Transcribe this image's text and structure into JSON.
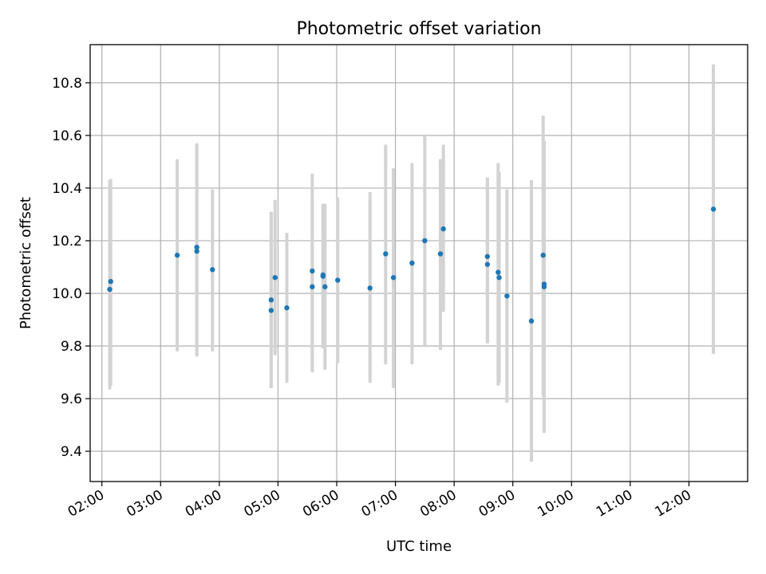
{
  "chart_data": {
    "type": "scatter",
    "title": "Photometric offset variation",
    "xlabel": "UTC time",
    "ylabel": "Photometric offset",
    "x_axis_type": "time",
    "xlim": [
      "01:48",
      "13:00"
    ],
    "ylim": [
      9.285,
      10.945
    ],
    "x_ticks": [
      "02:00",
      "03:00",
      "04:00",
      "05:00",
      "06:00",
      "07:00",
      "08:00",
      "09:00",
      "10:00",
      "11:00",
      "12:00"
    ],
    "y_ticks": [
      "9.4",
      "9.6",
      "9.8",
      "10.0",
      "10.2",
      "10.4",
      "10.6",
      "10.8"
    ],
    "grid": true,
    "point_color": "#1f77b4",
    "errorbar_color": "#d3d3d3",
    "points": [
      {
        "t": "02:08",
        "y": 10.015,
        "ylo": 9.635,
        "yhi": 10.43
      },
      {
        "t": "02:09",
        "y": 10.045,
        "ylo": 9.65,
        "yhi": 10.435
      },
      {
        "t": "03:17",
        "y": 10.145,
        "ylo": 9.78,
        "yhi": 10.51
      },
      {
        "t": "03:37",
        "y": 10.16,
        "ylo": 9.76,
        "yhi": 10.57
      },
      {
        "t": "03:37",
        "y": 10.175,
        "ylo": 9.77,
        "yhi": 10.56
      },
      {
        "t": "03:53",
        "y": 10.09,
        "ylo": 9.78,
        "yhi": 10.395
      },
      {
        "t": "04:53",
        "y": 9.975,
        "ylo": 9.64,
        "yhi": 10.31
      },
      {
        "t": "04:53",
        "y": 9.935,
        "ylo": 9.64,
        "yhi": 10.305
      },
      {
        "t": "04:57",
        "y": 10.06,
        "ylo": 9.765,
        "yhi": 10.355
      },
      {
        "t": "05:09",
        "y": 9.945,
        "ylo": 9.66,
        "yhi": 10.23
      },
      {
        "t": "05:35",
        "y": 10.085,
        "ylo": 9.71,
        "yhi": 10.455
      },
      {
        "t": "05:35",
        "y": 10.025,
        "ylo": 9.7,
        "yhi": 10.35
      },
      {
        "t": "05:46",
        "y": 10.07,
        "ylo": 9.8,
        "yhi": 10.34
      },
      {
        "t": "05:46",
        "y": 10.065,
        "ylo": 9.79,
        "yhi": 10.34
      },
      {
        "t": "05:48",
        "y": 10.025,
        "ylo": 9.71,
        "yhi": 10.34
      },
      {
        "t": "06:01",
        "y": 10.05,
        "ylo": 9.735,
        "yhi": 10.365
      },
      {
        "t": "06:34",
        "y": 10.02,
        "ylo": 9.66,
        "yhi": 10.385
      },
      {
        "t": "06:50",
        "y": 10.15,
        "ylo": 9.73,
        "yhi": 10.565
      },
      {
        "t": "06:58",
        "y": 10.06,
        "ylo": 9.64,
        "yhi": 10.475
      },
      {
        "t": "07:17",
        "y": 10.115,
        "ylo": 9.73,
        "yhi": 10.495
      },
      {
        "t": "07:30",
        "y": 10.2,
        "ylo": 9.8,
        "yhi": 10.6
      },
      {
        "t": "07:46",
        "y": 10.15,
        "ylo": 9.785,
        "yhi": 10.51
      },
      {
        "t": "07:49",
        "y": 10.245,
        "ylo": 9.93,
        "yhi": 10.565
      },
      {
        "t": "08:34",
        "y": 10.14,
        "ylo": 9.81,
        "yhi": 10.435
      },
      {
        "t": "08:34",
        "y": 10.11,
        "ylo": 9.81,
        "yhi": 10.44
      },
      {
        "t": "08:45",
        "y": 10.08,
        "ylo": 9.65,
        "yhi": 10.495
      },
      {
        "t": "08:46",
        "y": 10.06,
        "ylo": 9.66,
        "yhi": 10.46
      },
      {
        "t": "08:54",
        "y": 9.99,
        "ylo": 9.585,
        "yhi": 10.395
      },
      {
        "t": "09:19",
        "y": 9.895,
        "ylo": 9.36,
        "yhi": 10.43
      },
      {
        "t": "09:31",
        "y": 10.145,
        "ylo": 9.61,
        "yhi": 10.675
      },
      {
        "t": "09:32",
        "y": 10.035,
        "ylo": 9.47,
        "yhi": 10.575
      },
      {
        "t": "09:32",
        "y": 10.025,
        "ylo": 9.47,
        "yhi": 10.58
      },
      {
        "t": "12:25",
        "y": 10.32,
        "ylo": 9.77,
        "yhi": 10.87
      }
    ]
  }
}
